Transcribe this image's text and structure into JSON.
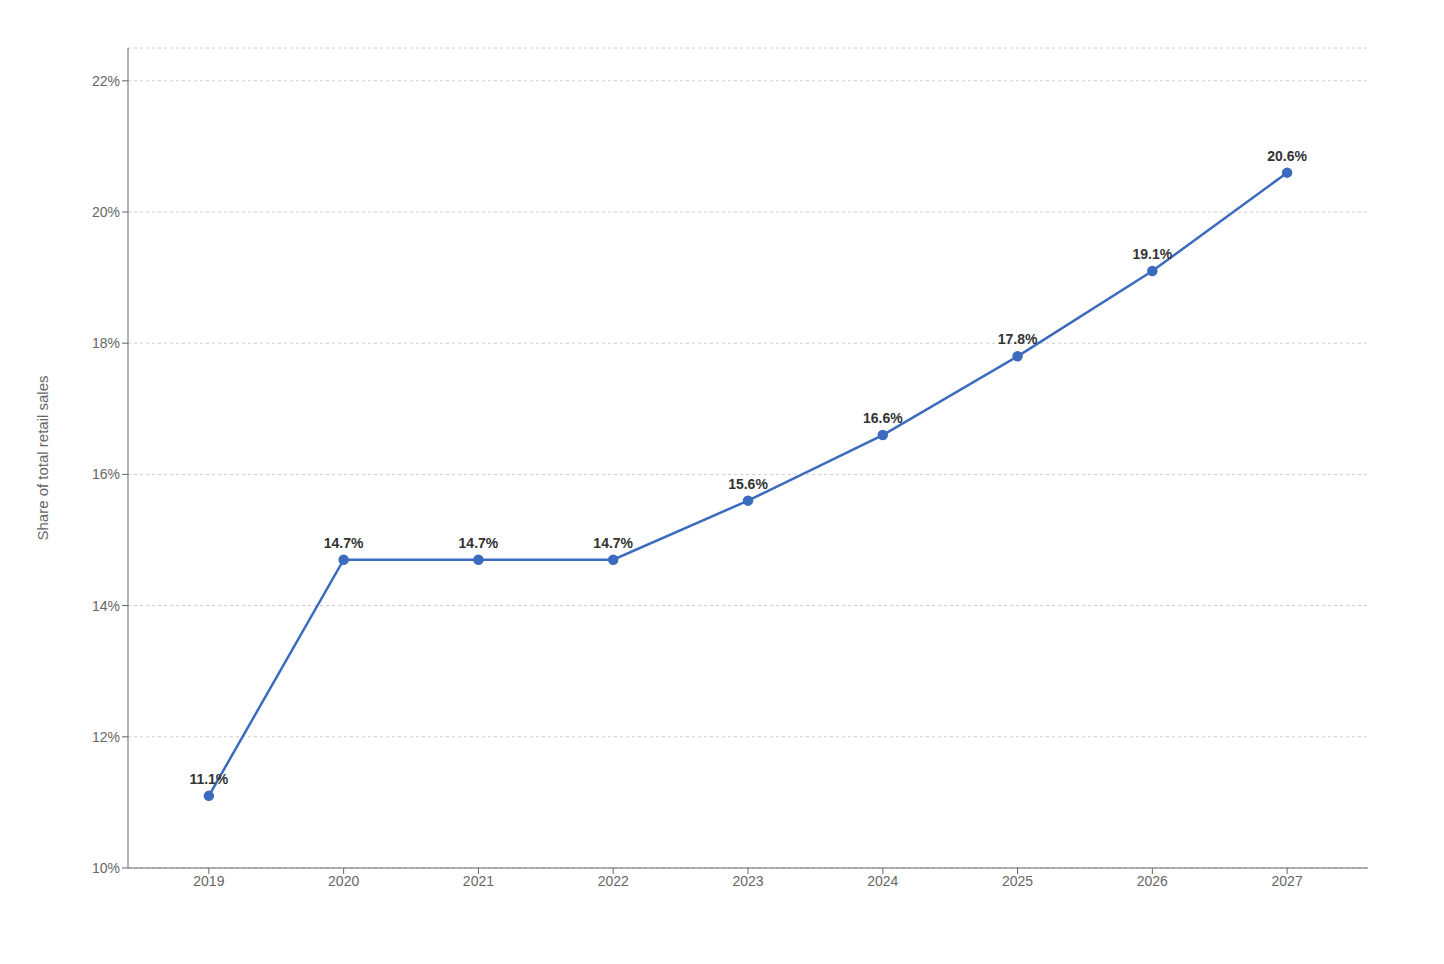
{
  "chart_data": {
    "type": "line",
    "x": [
      2019,
      2020,
      2021,
      2022,
      2023,
      2024,
      2025,
      2026,
      2027
    ],
    "values": [
      11.1,
      14.7,
      14.7,
      14.7,
      15.6,
      16.6,
      17.8,
      19.1,
      20.6
    ],
    "value_labels": [
      "11.1%",
      "14.7%",
      "14.7%",
      "14.7%",
      "15.6%",
      "16.6%",
      "17.8%",
      "19.1%",
      "20.6%"
    ],
    "data_labels": true,
    "color": "#3a6bbf",
    "marker": "circle",
    "ylabel": "Share of total retail sales",
    "xlim": [
      2018.4,
      2027.6
    ],
    "xticks": [
      2019,
      2020,
      2021,
      2022,
      2023,
      2024,
      2025,
      2026,
      2027
    ],
    "ylim": [
      10.0,
      22.5
    ],
    "yticks": [
      {
        "value": 10,
        "label": "10%"
      },
      {
        "value": 12,
        "label": "12%"
      },
      {
        "value": 14,
        "label": "14%"
      },
      {
        "value": 16,
        "label": "16%"
      },
      {
        "value": 18,
        "label": "18%"
      },
      {
        "value": 20,
        "label": "20%"
      },
      {
        "value": 22,
        "label": "22%"
      }
    ],
    "grid": "y"
  }
}
